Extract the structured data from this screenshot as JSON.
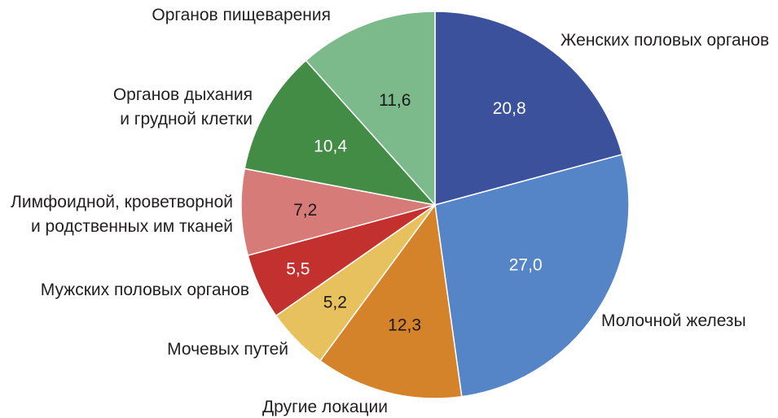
{
  "chart_data": {
    "type": "pie",
    "title": "",
    "slices": [
      {
        "label": "Женских половых органов",
        "value": 20.8,
        "value_label": "20,8",
        "color": "#3c519c",
        "text_color": "#ffffff"
      },
      {
        "label": "Молочной железы",
        "value": 27.0,
        "value_label": "27,0",
        "color": "#5585c6",
        "text_color": "#ffffff"
      },
      {
        "label": "Другие локации",
        "value": 12.3,
        "value_label": "12,3",
        "color": "#d5832a",
        "text_color": "#1a1a1a"
      },
      {
        "label": "Мочевых путей",
        "value": 5.2,
        "value_label": "5,2",
        "color": "#e8c15f",
        "text_color": "#1a1a1a"
      },
      {
        "label": "Мужских половых органов",
        "value": 5.5,
        "value_label": "5,5",
        "color": "#c3312e",
        "text_color": "#ffffff"
      },
      {
        "label": "Лимфоидной, кроветворной и родственных им тканей",
        "label_lines": [
          "Лимфоидной, кроветворной",
          "и родственных им тканей"
        ],
        "value": 7.2,
        "value_label": "7,2",
        "color": "#d77b78",
        "text_color": "#1a1a1a"
      },
      {
        "label": "Органов дыхания и грудной клетки",
        "label_lines": [
          "Органов дыхания",
          "и грудной клетки"
        ],
        "value": 10.4,
        "value_label": "10,4",
        "color": "#428c45",
        "text_color": "#ffffff"
      },
      {
        "label": "Органов пищеварения",
        "value": 11.6,
        "value_label": "11,6",
        "color": "#7cba8c",
        "text_color": "#1a1a1a"
      }
    ],
    "start": "top",
    "direction": "clockwise",
    "legend": "none"
  }
}
